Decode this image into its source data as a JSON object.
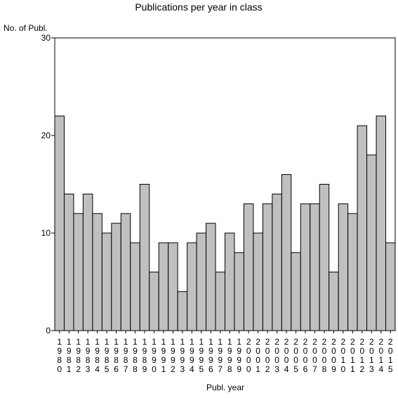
{
  "chart_data": {
    "type": "bar",
    "title": "Publications per year in class",
    "ylabel": "No. of Publ.",
    "xlabel": "Publ. year",
    "ylim": [
      0,
      30
    ],
    "yticks": [
      0,
      10,
      20,
      30
    ],
    "categories": [
      "1980",
      "1981",
      "1982",
      "1983",
      "1984",
      "1985",
      "1986",
      "1987",
      "1988",
      "1989",
      "1990",
      "1991",
      "1992",
      "1993",
      "1994",
      "1995",
      "1996",
      "1997",
      "1998",
      "1999",
      "2000",
      "2001",
      "2002",
      "2003",
      "2004",
      "2005",
      "2006",
      "2007",
      "2008",
      "2009",
      "2010",
      "2011",
      "2012",
      "2013",
      "2014",
      "2015"
    ],
    "values": [
      22,
      14,
      12,
      14,
      12,
      10,
      11,
      12,
      9,
      15,
      6,
      9,
      9,
      4,
      9,
      10,
      11,
      6,
      10,
      8,
      13,
      10,
      13,
      14,
      16,
      8,
      13,
      13,
      15,
      6,
      13,
      12,
      21,
      18,
      22,
      9
    ],
    "bar_color": "#c0c0c0",
    "grid": false
  }
}
